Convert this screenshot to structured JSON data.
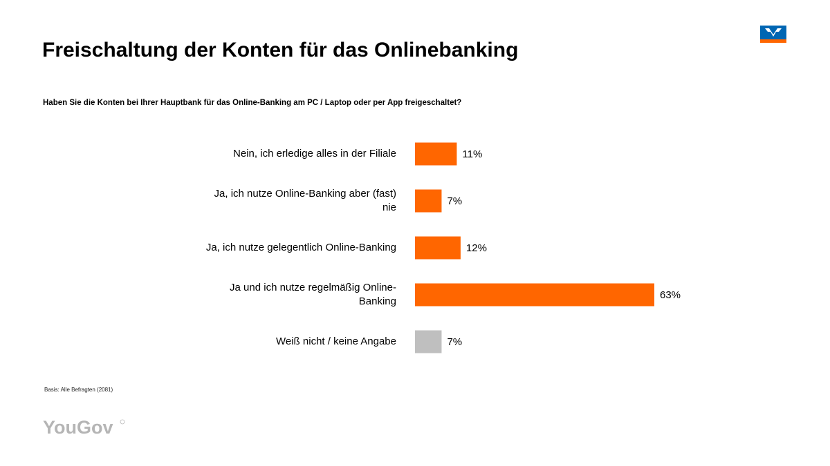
{
  "header": {
    "title": "Freischaltung der Konten für das Onlinebanking",
    "question": "Haben Sie die Konten bei Ihrer Hauptbank für das Online-Banking am PC / Laptop oder per App freigeschaltet?"
  },
  "footer": {
    "basis": "Basis: Alle Befragten (2081)"
  },
  "logos": {
    "bank": "Volksbanken Raiffeisenbanken logo",
    "yougov": "YouGov"
  },
  "colors": {
    "accent": "#FF6600",
    "neutral": "#BFBFBF",
    "logo_blue": "#0066B3",
    "logo_gray": "#B5B5B5"
  },
  "chart_data": {
    "type": "bar",
    "orientation": "horizontal",
    "title": "Freischaltung der Konten für das Onlinebanking",
    "subtitle": "Haben Sie die Konten bei Ihrer Hauptbank für das Online-Banking am PC / Laptop oder per App freigeschaltet?",
    "xlabel": "",
    "ylabel": "",
    "xlim": [
      0,
      63
    ],
    "grid": false,
    "legend": "none",
    "unit": "%",
    "categories": [
      "Nein, ich erledige alles in der Filiale",
      "Ja, ich nutze Online-Banking aber (fast) nie",
      "Ja, ich nutze gelegentlich Online-Banking",
      "Ja und ich nutze regelmäßig Online-Banking",
      "Weiß nicht / keine Angabe"
    ],
    "values": [
      11,
      7,
      12,
      63,
      7
    ],
    "value_labels": [
      "11%",
      "7%",
      "12%",
      "63%",
      "7%"
    ],
    "bar_colors": [
      "#FF6600",
      "#FF6600",
      "#FF6600",
      "#FF6600",
      "#BFBFBF"
    ]
  }
}
